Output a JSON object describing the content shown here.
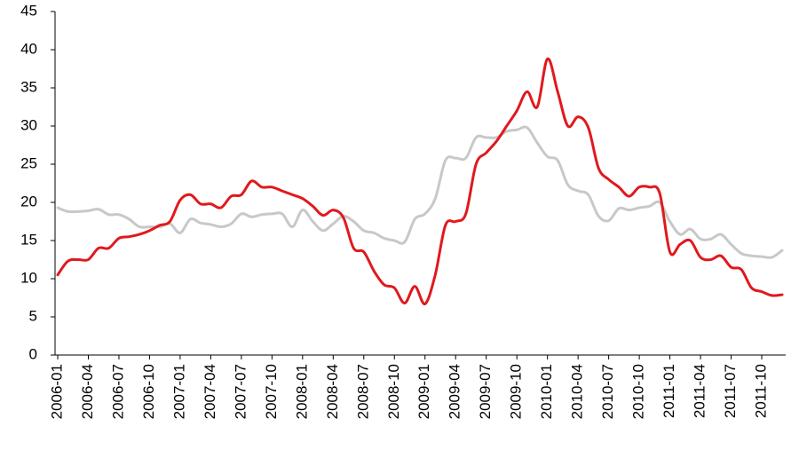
{
  "chart_data": {
    "type": "line",
    "categories": [
      "2006-01",
      null,
      null,
      "2006-04",
      null,
      null,
      "2006-07",
      null,
      null,
      "2006-10",
      null,
      null,
      "2007-01",
      null,
      null,
      "2007-04",
      null,
      null,
      "2007-07",
      null,
      null,
      "2007-10",
      null,
      null,
      "2008-01",
      null,
      null,
      "2008-04",
      null,
      null,
      "2008-07",
      null,
      null,
      "2008-10",
      null,
      null,
      "2009-01",
      null,
      null,
      "2009-04",
      null,
      null,
      "2009-07",
      null,
      null,
      "2009-10",
      null,
      null,
      "2010-01",
      null,
      null,
      "2010-04",
      null,
      null,
      "2010-07",
      null,
      null,
      "2010-10",
      null,
      null,
      "2011-01",
      null,
      null,
      "2011-04",
      null,
      null,
      "2011-07",
      null,
      null,
      "2011-10",
      null,
      null
    ],
    "series": [
      {
        "color": "#c8c8c8",
        "values": [
          19.3,
          18.8,
          18.8,
          18.9,
          19.1,
          18.4,
          18.4,
          17.8,
          16.8,
          16.8,
          16.8,
          17.2,
          16.0,
          17.8,
          17.3,
          17.1,
          16.8,
          17.2,
          18.5,
          18.1,
          18.4,
          18.5,
          18.5,
          16.8,
          19.0,
          17.5,
          16.3,
          17.2,
          18.2,
          17.5,
          16.3,
          16.0,
          15.3,
          15.0,
          14.8,
          17.8,
          18.5,
          20.5,
          25.5,
          25.8,
          25.8,
          28.5,
          28.5,
          28.5,
          29.3,
          29.5,
          29.8,
          27.8,
          26.0,
          25.5,
          22.3,
          21.5,
          21.0,
          18.2,
          17.6,
          19.2,
          19.0,
          19.3,
          19.5,
          20.0,
          17.5,
          15.8,
          16.5,
          15.2,
          15.2,
          15.8,
          14.5,
          13.3,
          13.0,
          12.9,
          12.8,
          13.7
        ]
      },
      {
        "color": "#e0191e",
        "values": [
          10.5,
          12.3,
          12.5,
          12.5,
          14.0,
          14.0,
          15.3,
          15.5,
          15.8,
          16.3,
          17.0,
          17.5,
          20.3,
          21.0,
          19.8,
          19.8,
          19.3,
          20.8,
          21.0,
          22.8,
          22.0,
          22.0,
          21.5,
          21.0,
          20.5,
          19.5,
          18.3,
          19.0,
          18.0,
          14.0,
          13.5,
          11.0,
          9.2,
          8.8,
          6.8,
          9.0,
          6.7,
          10.5,
          17.0,
          17.5,
          18.5,
          25.0,
          26.5,
          28.0,
          30.0,
          32.0,
          34.5,
          32.5,
          38.8,
          34.5,
          30.0,
          31.2,
          29.8,
          24.5,
          23.0,
          22.0,
          20.8,
          22.0,
          22.0,
          21.2,
          13.5,
          14.5,
          15.0,
          12.8,
          12.5,
          13.0,
          11.5,
          11.2,
          8.8,
          8.3,
          7.8,
          7.9
        ]
      }
    ],
    "ylim": [
      0,
      45
    ],
    "yticks": [
      0,
      5,
      10,
      15,
      20,
      25,
      30,
      35,
      40,
      45
    ]
  }
}
